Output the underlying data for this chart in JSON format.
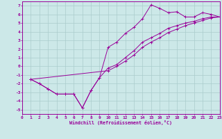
{
  "bg_color": "#cce8e8",
  "grid_color": "#aacccc",
  "line_color": "#990099",
  "xlim": [
    0,
    23
  ],
  "ylim": [
    -5.5,
    7.5
  ],
  "xticks": [
    0,
    1,
    2,
    3,
    4,
    5,
    6,
    7,
    8,
    9,
    10,
    11,
    12,
    13,
    14,
    15,
    16,
    17,
    18,
    19,
    20,
    21,
    22,
    23
  ],
  "yticks": [
    -5,
    -4,
    -3,
    -2,
    -1,
    0,
    1,
    2,
    3,
    4,
    5,
    6,
    7
  ],
  "xlabel": "Windchill (Refroidissement éolien,°C)",
  "line1_x": [
    1,
    2,
    3,
    4,
    5,
    6,
    7,
    8,
    9,
    10,
    11,
    12,
    13,
    14,
    15,
    16,
    17,
    18,
    19,
    20,
    21,
    22,
    23
  ],
  "line1_y": [
    -1.5,
    -2.0,
    -2.6,
    -3.2,
    -3.2,
    -3.2,
    -4.8,
    -2.8,
    -1.3,
    2.2,
    2.8,
    3.8,
    4.5,
    5.5,
    7.1,
    6.7,
    6.2,
    6.3,
    5.7,
    5.7,
    6.2,
    6.0,
    5.7
  ],
  "line2_x": [
    1,
    2,
    3,
    4,
    5,
    6,
    7,
    8,
    9,
    10,
    11,
    12,
    13,
    14,
    15,
    16,
    17,
    18,
    19,
    20,
    21,
    22,
    23
  ],
  "line2_y": [
    -1.5,
    -2.0,
    -2.6,
    -3.2,
    -3.2,
    -3.2,
    -4.8,
    -2.8,
    -1.3,
    -0.2,
    0.2,
    1.0,
    1.8,
    2.8,
    3.3,
    3.8,
    4.4,
    4.7,
    5.0,
    5.2,
    5.5,
    5.7,
    5.7
  ],
  "line3_x": [
    1,
    10,
    11,
    12,
    13,
    14,
    15,
    16,
    17,
    18,
    19,
    20,
    21,
    22,
    23
  ],
  "line3_y": [
    -1.5,
    -0.5,
    0.0,
    0.6,
    1.3,
    2.2,
    2.8,
    3.3,
    3.9,
    4.3,
    4.7,
    5.0,
    5.3,
    5.6,
    5.7
  ]
}
